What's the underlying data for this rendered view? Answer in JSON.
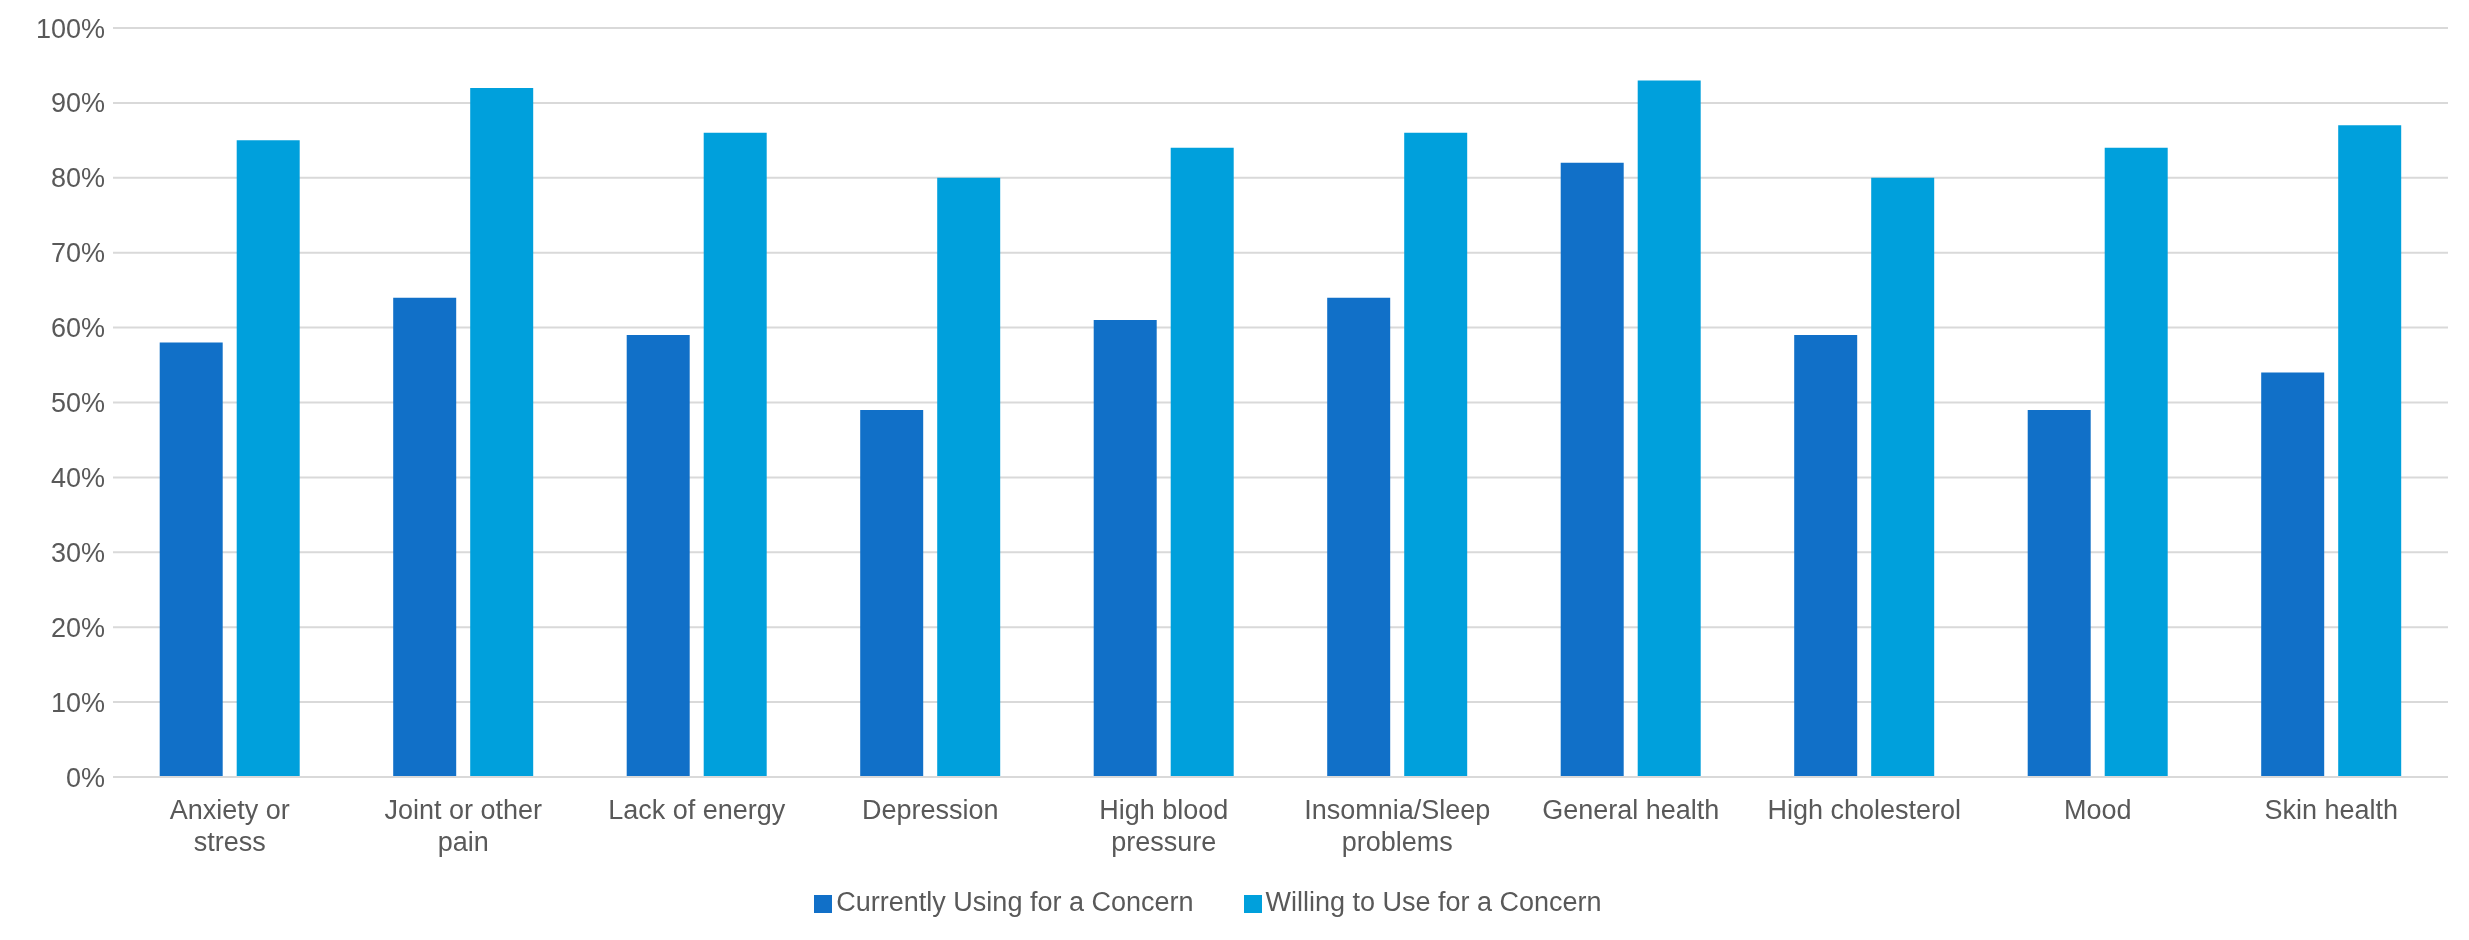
{
  "chart_data": {
    "type": "bar",
    "categories": [
      "Anxiety or stress",
      "Joint or other pain",
      "Lack of energy",
      "Depression",
      "High blood pressure",
      "Insomnia/Sleep problems",
      "General health",
      "High cholesterol",
      "Mood",
      "Skin health"
    ],
    "series": [
      {
        "name": "Currently Using for a Concern",
        "color": "#1170c8",
        "values": [
          58,
          64,
          59,
          49,
          61,
          64,
          82,
          59,
          49,
          54
        ]
      },
      {
        "name": "Willing to Use for a Concern",
        "color": "#00a0dc",
        "values": [
          85,
          92,
          86,
          80,
          84,
          86,
          93,
          80,
          84,
          87
        ]
      }
    ],
    "ylim": [
      0,
      100
    ],
    "yticks": [
      {
        "value": 0,
        "label": "0%"
      },
      {
        "value": 10,
        "label": "10%"
      },
      {
        "value": 20,
        "label": "20%"
      },
      {
        "value": 30,
        "label": "30%"
      },
      {
        "value": 40,
        "label": "40%"
      },
      {
        "value": 50,
        "label": "50%"
      },
      {
        "value": 60,
        "label": "60%"
      },
      {
        "value": 70,
        "label": "70%"
      },
      {
        "value": 80,
        "label": "80%"
      },
      {
        "value": 90,
        "label": "90%"
      },
      {
        "value": 100,
        "label": "100%"
      }
    ],
    "grid": "y",
    "legend": "bottom"
  }
}
